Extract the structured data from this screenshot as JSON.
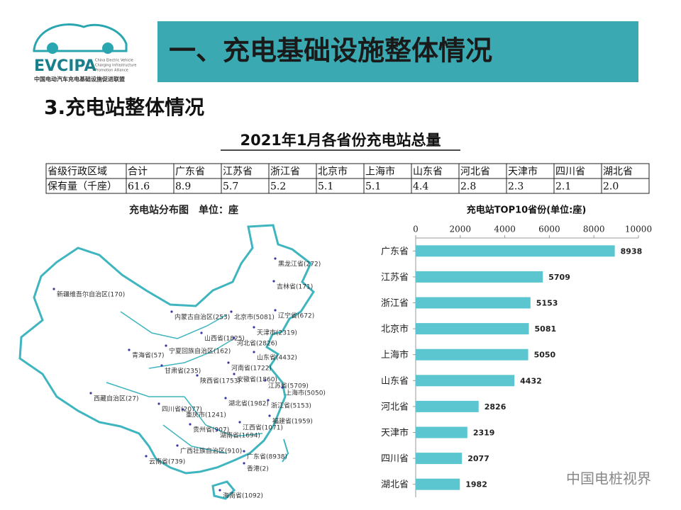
{
  "logo": {
    "name": "EVCIPA",
    "subtitle_en": [
      "China Electric Vehicle",
      "Charging Infrastructure",
      "Promotion Alliance"
    ],
    "subtitle_cn": "中国电动汽车充电基础设施促进联盟"
  },
  "header": {
    "title": "一、充电基础设施整体情况",
    "section": "3.充电站整体情况",
    "table_title": "2021年1月各省份充电站总量"
  },
  "table": {
    "rows": [
      [
        "省级行政区域",
        "合计",
        "广东省",
        "江苏省",
        "浙江省",
        "北京市",
        "上海市",
        "山东省",
        "河北省",
        "天津市",
        "四川省",
        "湖北省"
      ],
      [
        "保有量（千座）",
        "61.6",
        "8.9",
        "5.7",
        "5.2",
        "5.1",
        "5.1",
        "4.4",
        "2.8",
        "2.3",
        "2.1",
        "2.0"
      ]
    ]
  },
  "map": {
    "title": "充电站分布图　单位：座",
    "labels": [
      "黑龙江省(272)",
      "吉林省(171)",
      "新疆维吾尔自治区(170)",
      "内蒙古自治区(253)",
      "北京市(5081)",
      "辽宁省(672)",
      "天津市(2319)",
      "山西省(1825)",
      "河北省(2826)",
      "青海省(57)",
      "宁夏回族自治区(162)",
      "山东省(4432)",
      "甘肃省(235)",
      "河南省(1722)",
      "陕西省(1753)",
      "安徽省(1860)",
      "江苏省(5709)",
      "上海市(5050)",
      "西藏自治区(27)",
      "湖北省(1982)",
      "浙江省(5153)",
      "四川省(2077)",
      "重庆市(1241)",
      "福建省(1959)",
      "江西省(1071)",
      "贵州省(907)",
      "湖南省(1694)",
      "广西壮族自治区(910)",
      "广东省(8938)",
      "云南省(739)",
      "香港(2)",
      "海南省(1092)"
    ]
  },
  "chart_data": {
    "type": "bar",
    "orientation": "horizontal",
    "title": "充电站TOP10省份(单位:座)",
    "categories": [
      "广东省",
      "江苏省",
      "浙江省",
      "北京市",
      "上海市",
      "山东省",
      "河北省",
      "天津市",
      "四川省",
      "湖北省"
    ],
    "values": [
      8938,
      5709,
      5153,
      5081,
      5050,
      4432,
      2826,
      2319,
      2077,
      1982
    ],
    "color": "#5cc6d0",
    "xlim": [
      0,
      10000
    ],
    "xticks": [
      0,
      2000,
      4000,
      6000,
      8000,
      10000
    ]
  },
  "watermark": "中国电桩视界"
}
